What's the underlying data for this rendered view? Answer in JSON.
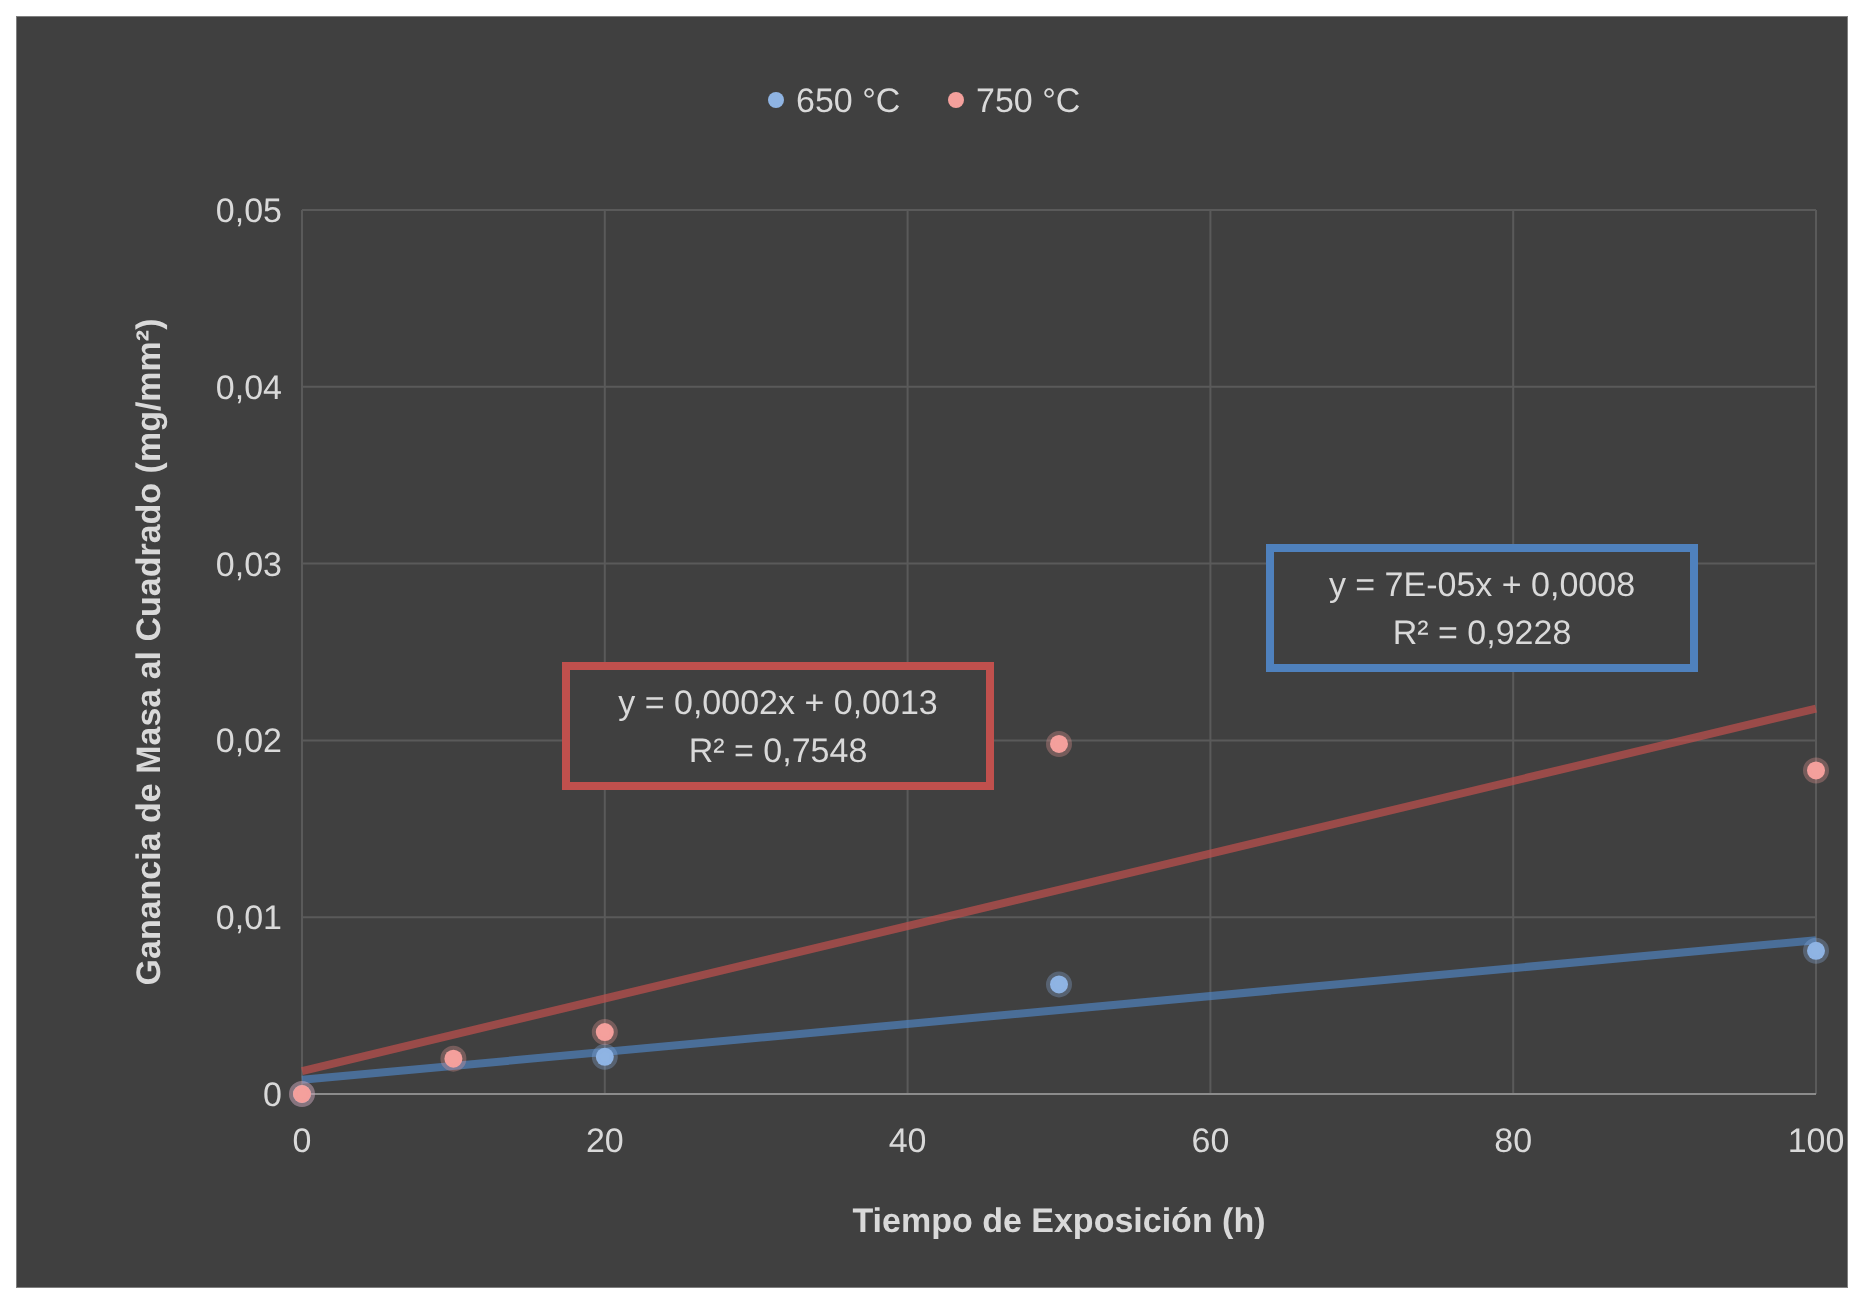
{
  "chart_data": {
    "type": "scatter",
    "xlabel": "Tiempo de Exposición (h)",
    "ylabel": "Ganancia de Masa al Cuadrado (mg/mm²)",
    "xlim": [
      0,
      100
    ],
    "xticks": [
      0,
      20,
      40,
      60,
      80,
      100
    ],
    "ylim": [
      0,
      0.05
    ],
    "yticks": [
      {
        "value": 0,
        "label": "0"
      },
      {
        "value": 0.01,
        "label": "0,01"
      },
      {
        "value": 0.02,
        "label": "0,02"
      },
      {
        "value": 0.03,
        "label": "0,03"
      },
      {
        "value": 0.04,
        "label": "0,04"
      },
      {
        "value": 0.05,
        "label": "0,05"
      }
    ],
    "grid": true,
    "legend": "top",
    "marker": "circle",
    "series": [
      {
        "name": "650 °C",
        "color": "#8fb4e3",
        "x": [
          0,
          20,
          50,
          100
        ],
        "values": [
          0,
          0.0021,
          0.0062,
          0.0081
        ]
      },
      {
        "name": "750 °C",
        "color": "#f4a09c",
        "x": [
          0,
          10,
          20,
          50,
          100
        ],
        "values": [
          0,
          0.002,
          0.0035,
          0.0198,
          0.0183
        ]
      },
      {
        "type": "line",
        "color": "#c0504d",
        "marker": "none",
        "x": [
          0,
          100
        ],
        "values": [
          0.0013,
          0.0218
        ]
      },
      {
        "type": "line",
        "color": "#4f81bd",
        "marker": "none",
        "x": [
          0,
          100
        ],
        "values": [
          0.0008,
          0.0087
        ]
      }
    ],
    "annotations": [
      "y = 0,0002x + 0,0013\nR² = 0,7548",
      "y = 7E-05x + 0,0008\nR² = 0,9228"
    ]
  }
}
